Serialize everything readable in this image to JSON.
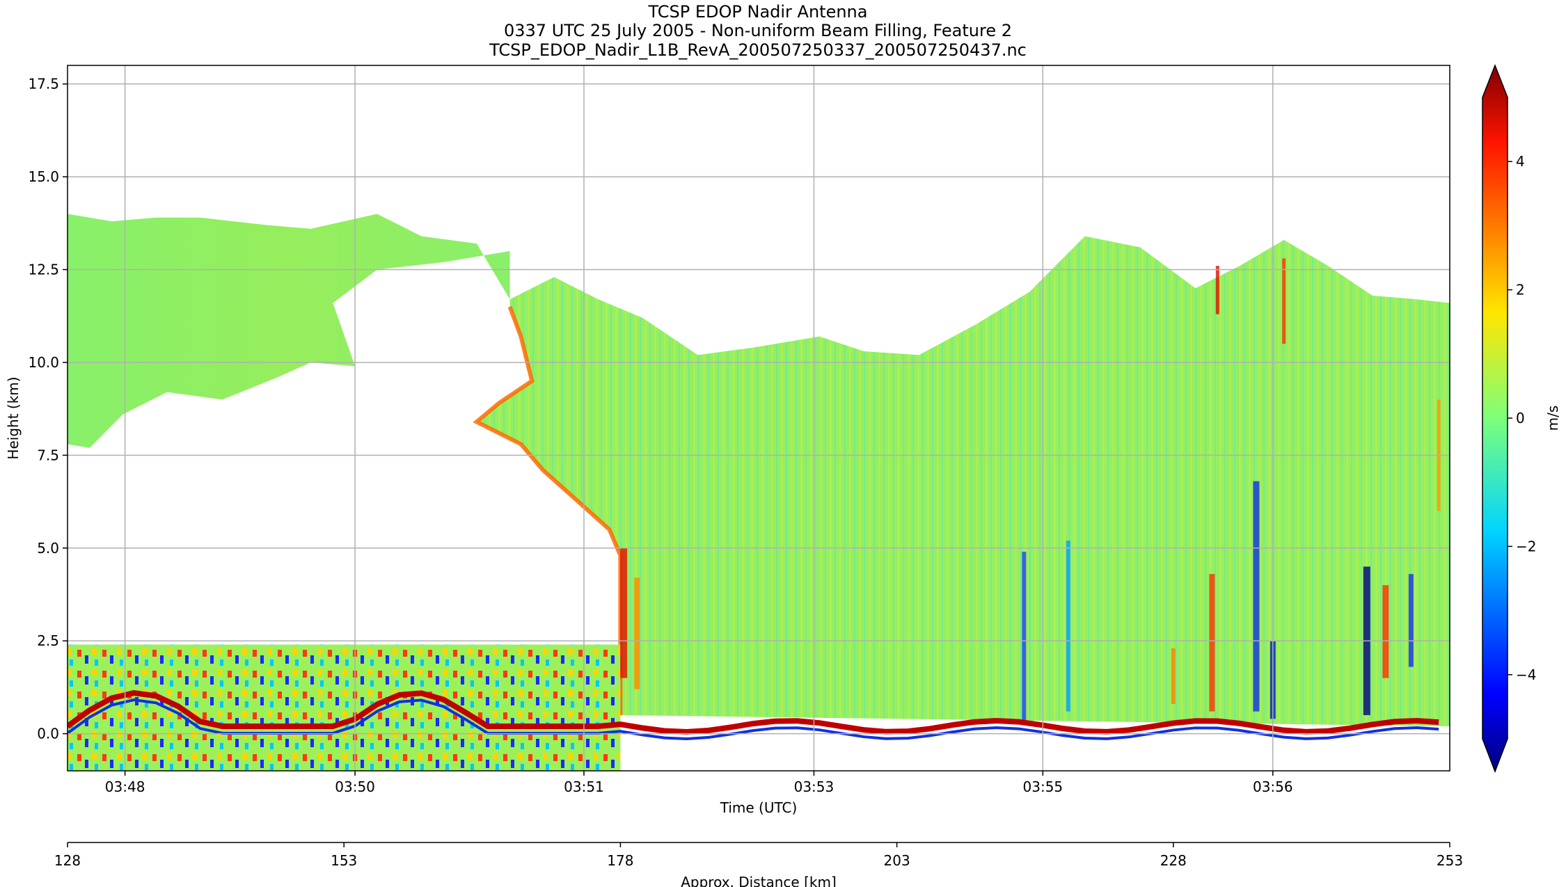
{
  "chart_data": {
    "type": "heatmap",
    "title_lines": [
      "TCSP EDOP Nadir Antenna",
      "0337 UTC 25 July 2005 - Non-uniform Beam Filling, Feature 2",
      "TCSP_EDOP_Nadir_L1B_RevA_200507250337_200507250437.nc"
    ],
    "xlabel": "Time (UTC)",
    "ylabel": "Height (km)",
    "x2label": "Approx. Distance [km]",
    "colorbar_label": "m/s",
    "colormap": "jet",
    "grid": true,
    "ylim": [
      -1.0,
      18.0
    ],
    "yticks": [
      0.0,
      2.5,
      5.0,
      7.5,
      10.0,
      12.5,
      15.0,
      17.5
    ],
    "ytick_labels": [
      "0.0",
      "2.5",
      "5.0",
      "7.5",
      "10.0",
      "12.5",
      "15.0",
      "17.5"
    ],
    "xlim_distance_km": [
      128,
      253
    ],
    "x_time_ticks": [
      {
        "label": "03:48",
        "distance_km": 133.2
      },
      {
        "label": "03:50",
        "distance_km": 154.0
      },
      {
        "label": "03:51",
        "distance_km": 174.7
      },
      {
        "label": "03:53",
        "distance_km": 195.5
      },
      {
        "label": "03:55",
        "distance_km": 216.2
      },
      {
        "label": "03:56",
        "distance_km": 237.0
      }
    ],
    "x_distance_ticks": [
      128,
      153,
      178,
      203,
      228,
      253
    ],
    "colorbar_range": [
      -5,
      5
    ],
    "colorbar_ticks": [
      4,
      2,
      0,
      -2,
      -4
    ],
    "colorbar_tick_labels": [
      "4",
      "2",
      "0",
      "−2",
      "−4"
    ],
    "echo_top_km": [
      [
        128,
        14.0
      ],
      [
        132,
        13.8
      ],
      [
        136,
        13.9
      ],
      [
        140,
        13.9
      ],
      [
        146,
        13.7
      ],
      [
        150,
        13.6
      ],
      [
        156,
        14.0
      ],
      [
        160,
        13.4
      ],
      [
        165,
        13.2
      ],
      [
        168,
        11.7
      ],
      [
        172,
        12.3
      ],
      [
        176,
        11.7
      ],
      [
        180,
        11.2
      ],
      [
        185,
        10.2
      ],
      [
        190,
        10.4
      ],
      [
        196,
        10.7
      ],
      [
        200,
        10.3
      ],
      [
        205,
        10.2
      ],
      [
        210,
        11.0
      ],
      [
        215,
        11.9
      ],
      [
        220,
        13.4
      ],
      [
        225,
        13.1
      ],
      [
        230,
        12.0
      ],
      [
        234,
        12.6
      ],
      [
        238,
        13.3
      ],
      [
        242,
        12.6
      ],
      [
        246,
        11.8
      ],
      [
        250,
        11.7
      ],
      [
        253,
        11.6
      ]
    ],
    "upper_anvil_bottom_km": [
      [
        128,
        7.8
      ],
      [
        130,
        7.7
      ],
      [
        133,
        8.6
      ],
      [
        137,
        9.2
      ],
      [
        142,
        9.0
      ],
      [
        147,
        9.6
      ],
      [
        150,
        10.0
      ],
      [
        154,
        9.9
      ],
      [
        152,
        11.6
      ],
      [
        156,
        12.5
      ],
      [
        162,
        12.7
      ],
      [
        168,
        13.0
      ]
    ],
    "core_left_edge_km": [
      [
        168,
        11.5
      ],
      [
        169,
        10.7
      ],
      [
        170,
        9.5
      ],
      [
        167,
        8.9
      ],
      [
        165,
        8.4
      ],
      [
        169,
        7.8
      ],
      [
        171,
        7.1
      ],
      [
        174,
        6.3
      ],
      [
        177,
        5.5
      ],
      [
        178,
        4.8
      ],
      [
        178,
        2.5
      ],
      [
        178,
        0.5
      ]
    ],
    "lower_layer_top_km": 2.4,
    "surface_km": 0.2
  }
}
